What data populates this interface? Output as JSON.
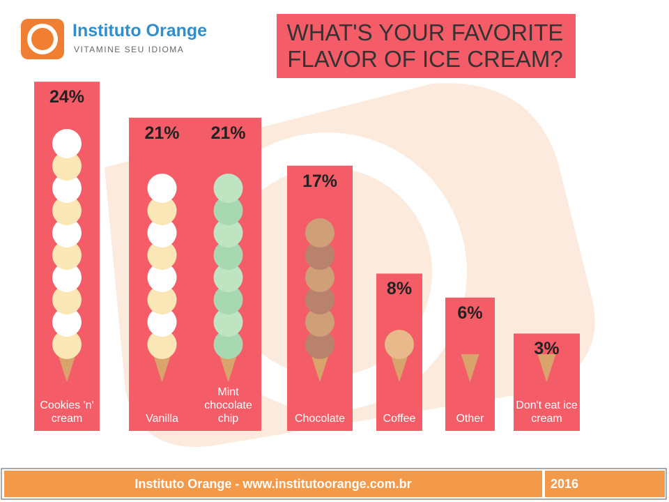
{
  "brand": {
    "name": "Instituto Orange",
    "tagline": "VITAMINE SEU IDIOMA"
  },
  "chart_data": {
    "type": "bar",
    "title": "WHAT'S YOUR FAVORITE FLAVOR OF ICE CREAM?",
    "categories": [
      "Cookies 'n' cream",
      "Vanilla",
      "Mint chocolate chip",
      "Chocolate",
      "Coffee",
      "Other",
      "Don't eat ice cream"
    ],
    "values": [
      24,
      21,
      21,
      17,
      8,
      6,
      3
    ],
    "value_labels": [
      "24%",
      "21%",
      "21%",
      "17%",
      "8%",
      "6%",
      "3%"
    ],
    "color": "#f45d67"
  },
  "footer": {
    "text": "Instituto Orange - www.institutoorange.com.br",
    "year": "2016"
  }
}
